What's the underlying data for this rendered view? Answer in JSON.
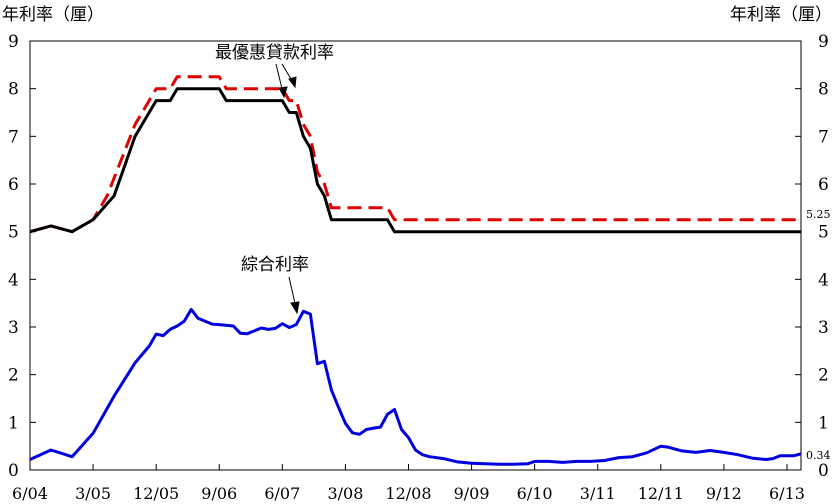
{
  "chart_data": {
    "type": "line",
    "ylabel_left": "年利率（厘）",
    "ylabel_right": "年利率（厘）",
    "ylim": [
      0,
      9
    ],
    "yticks": [
      0,
      1,
      2,
      3,
      4,
      5,
      6,
      7,
      8,
      9
    ],
    "xlim": [
      0,
      110
    ],
    "xticks": [
      {
        "x": 0,
        "label": "6/04"
      },
      {
        "x": 9,
        "label": "3/05"
      },
      {
        "x": 18,
        "label": "12/05"
      },
      {
        "x": 27,
        "label": "9/06"
      },
      {
        "x": 36,
        "label": "6/07"
      },
      {
        "x": 45,
        "label": "3/08"
      },
      {
        "x": 54,
        "label": "12/08"
      },
      {
        "x": 63,
        "label": "9/09"
      },
      {
        "x": 72,
        "label": "6/10"
      },
      {
        "x": 81,
        "label": "3/11"
      },
      {
        "x": 90,
        "label": "12/11"
      },
      {
        "x": 99,
        "label": "9/12"
      },
      {
        "x": 108,
        "label": "6/13"
      }
    ],
    "grid": false,
    "annotations": [
      {
        "text": "最優惠貸款利率",
        "x": 39,
        "y": 8.65
      },
      {
        "text": "綜合利率",
        "x": 35,
        "y": 4.3
      }
    ],
    "end_labels": [
      {
        "text": "5.25",
        "y": 5.25,
        "color": "#000000"
      },
      {
        "text": "0.34",
        "y": 0.34,
        "color": "#000000"
      }
    ],
    "series": [
      {
        "color": "#e00000",
        "dash": true,
        "points": [
          [
            0,
            5.0
          ],
          [
            3,
            5.12
          ],
          [
            6,
            5.0
          ],
          [
            9,
            5.25
          ],
          [
            11,
            5.75
          ],
          [
            13,
            6.5
          ],
          [
            15,
            7.25
          ],
          [
            17,
            7.75
          ],
          [
            18,
            8.0
          ],
          [
            20,
            8.0
          ],
          [
            21,
            8.25
          ],
          [
            24,
            8.25
          ],
          [
            27,
            8.25
          ],
          [
            28,
            8.0
          ],
          [
            30,
            8.0
          ],
          [
            33,
            8.0
          ],
          [
            36,
            8.0
          ],
          [
            37,
            7.75
          ],
          [
            38,
            7.75
          ],
          [
            39,
            7.25
          ],
          [
            40,
            7.0
          ],
          [
            41,
            6.25
          ],
          [
            42,
            6.0
          ],
          [
            43,
            5.5
          ],
          [
            44,
            5.5
          ],
          [
            47,
            5.5
          ],
          [
            50,
            5.5
          ],
          [
            51,
            5.5
          ],
          [
            52,
            5.25
          ],
          [
            60,
            5.25
          ],
          [
            80,
            5.25
          ],
          [
            100,
            5.25
          ],
          [
            110,
            5.25
          ]
        ]
      },
      {
        "color": "#000000",
        "dash": false,
        "points": [
          [
            0,
            5.0
          ],
          [
            3,
            5.12
          ],
          [
            6,
            5.0
          ],
          [
            9,
            5.25
          ],
          [
            12,
            5.75
          ],
          [
            15,
            7.0
          ],
          [
            18,
            7.75
          ],
          [
            20,
            7.75
          ],
          [
            21,
            8.0
          ],
          [
            24,
            8.0
          ],
          [
            27,
            8.0
          ],
          [
            28,
            7.75
          ],
          [
            30,
            7.75
          ],
          [
            36,
            7.75
          ],
          [
            37,
            7.5
          ],
          [
            38,
            7.5
          ],
          [
            39,
            7.0
          ],
          [
            40,
            6.75
          ],
          [
            41,
            6.0
          ],
          [
            42,
            5.75
          ],
          [
            43,
            5.25
          ],
          [
            46,
            5.25
          ],
          [
            50,
            5.25
          ],
          [
            51,
            5.25
          ],
          [
            52,
            5.0
          ],
          [
            60,
            5.0
          ],
          [
            80,
            5.0
          ],
          [
            100,
            5.0
          ],
          [
            110,
            5.0
          ]
        ]
      },
      {
        "color": "#0000e0",
        "dash": false,
        "points": [
          [
            0,
            0.22
          ],
          [
            3,
            0.42
          ],
          [
            6,
            0.28
          ],
          [
            9,
            0.77
          ],
          [
            12,
            1.55
          ],
          [
            15,
            2.25
          ],
          [
            17,
            2.6
          ],
          [
            18,
            2.85
          ],
          [
            19,
            2.82
          ],
          [
            20,
            2.95
          ],
          [
            21,
            3.02
          ],
          [
            22,
            3.12
          ],
          [
            23,
            3.37
          ],
          [
            24,
            3.18
          ],
          [
            26,
            3.06
          ],
          [
            27,
            3.05
          ],
          [
            29,
            3.02
          ],
          [
            30,
            2.87
          ],
          [
            31,
            2.86
          ],
          [
            33,
            2.98
          ],
          [
            34,
            2.95
          ],
          [
            35,
            2.97
          ],
          [
            36,
            3.07
          ],
          [
            37,
            2.99
          ],
          [
            38,
            3.05
          ],
          [
            39,
            3.33
          ],
          [
            40,
            3.27
          ],
          [
            41,
            2.23
          ],
          [
            42,
            2.28
          ],
          [
            43,
            1.68
          ],
          [
            44,
            1.32
          ],
          [
            45,
            0.98
          ],
          [
            46,
            0.78
          ],
          [
            47,
            0.75
          ],
          [
            48,
            0.85
          ],
          [
            49,
            0.88
          ],
          [
            50,
            0.9
          ],
          [
            51,
            1.17
          ],
          [
            52,
            1.27
          ],
          [
            53,
            0.85
          ],
          [
            54,
            0.68
          ],
          [
            55,
            0.42
          ],
          [
            56,
            0.32
          ],
          [
            57,
            0.28
          ],
          [
            59,
            0.24
          ],
          [
            61,
            0.17
          ],
          [
            63,
            0.14
          ],
          [
            65,
            0.13
          ],
          [
            67,
            0.12
          ],
          [
            69,
            0.12
          ],
          [
            71,
            0.13
          ],
          [
            72,
            0.18
          ],
          [
            74,
            0.18
          ],
          [
            76,
            0.16
          ],
          [
            78,
            0.18
          ],
          [
            80,
            0.18
          ],
          [
            82,
            0.2
          ],
          [
            84,
            0.26
          ],
          [
            86,
            0.28
          ],
          [
            88,
            0.36
          ],
          [
            90,
            0.5
          ],
          [
            91,
            0.48
          ],
          [
            93,
            0.4
          ],
          [
            95,
            0.37
          ],
          [
            97,
            0.41
          ],
          [
            99,
            0.37
          ],
          [
            101,
            0.32
          ],
          [
            103,
            0.25
          ],
          [
            105,
            0.22
          ],
          [
            106,
            0.24
          ],
          [
            107,
            0.3
          ],
          [
            109,
            0.3
          ],
          [
            110,
            0.34
          ]
        ]
      }
    ]
  }
}
